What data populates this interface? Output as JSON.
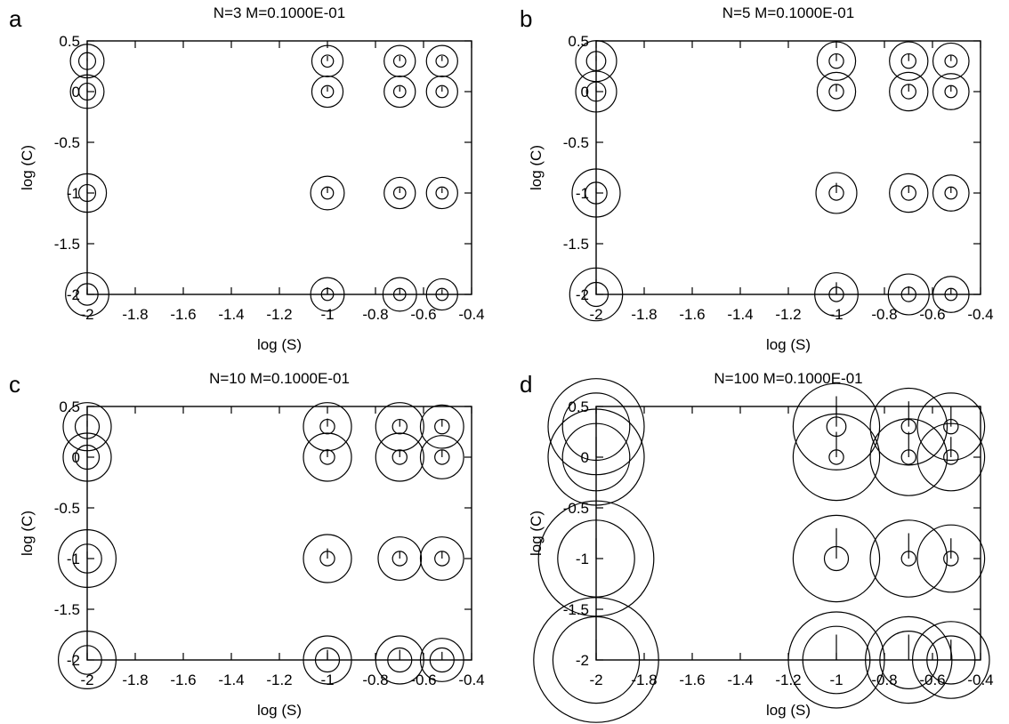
{
  "chart_data": [
    {
      "type": "scatter",
      "panel": "a",
      "title": "N=3 M=0.1000E-01",
      "xlabel": "log (S)",
      "ylabel": "log (C)",
      "xlim": [
        -2,
        -0.4
      ],
      "ylim": [
        -2,
        0.5
      ],
      "xticks": [
        "-2",
        "-1.8",
        "-1.6",
        "-1.4",
        "-1.2",
        "-1",
        "-0.8",
        "-0.6",
        "-0.4"
      ],
      "yticks": [
        "0.5",
        "0",
        "-0.5",
        "-1",
        "-1.5",
        "-2"
      ],
      "grid": false,
      "points": [
        {
          "x": -2,
          "y": 0.301,
          "r_outer": 0.07,
          "r_inner": 0.035,
          "err": 0.03
        },
        {
          "x": -2,
          "y": 0,
          "r_outer": 0.07,
          "r_inner": 0.035,
          "err": 0.03
        },
        {
          "x": -2,
          "y": -1,
          "r_outer": 0.08,
          "r_inner": 0.035,
          "err": 0.04
        },
        {
          "x": -2,
          "y": -2,
          "r_outer": 0.09,
          "r_inner": 0.045,
          "err": 0.05
        },
        {
          "x": -1,
          "y": 0.301,
          "r_outer": 0.065,
          "r_inner": 0.025,
          "err": 0.05
        },
        {
          "x": -1,
          "y": 0,
          "r_outer": 0.065,
          "r_inner": 0.025,
          "err": 0.05
        },
        {
          "x": -1,
          "y": -1,
          "r_outer": 0.07,
          "r_inner": 0.025,
          "err": 0.06
        },
        {
          "x": -1,
          "y": -2,
          "r_outer": 0.07,
          "r_inner": 0.025,
          "err": 0.06
        },
        {
          "x": -0.699,
          "y": 0.301,
          "r_outer": 0.065,
          "r_inner": 0.025,
          "err": 0.05
        },
        {
          "x": -0.699,
          "y": 0,
          "r_outer": 0.065,
          "r_inner": 0.025,
          "err": 0.05
        },
        {
          "x": -0.699,
          "y": -1,
          "r_outer": 0.065,
          "r_inner": 0.025,
          "err": 0.05
        },
        {
          "x": -0.699,
          "y": -2,
          "r_outer": 0.07,
          "r_inner": 0.025,
          "err": 0.06
        },
        {
          "x": -0.523,
          "y": 0.301,
          "r_outer": 0.065,
          "r_inner": 0.025,
          "err": 0.05
        },
        {
          "x": -0.523,
          "y": 0,
          "r_outer": 0.065,
          "r_inner": 0.025,
          "err": 0.05
        },
        {
          "x": -0.523,
          "y": -1,
          "r_outer": 0.065,
          "r_inner": 0.025,
          "err": 0.05
        },
        {
          "x": -0.523,
          "y": -2,
          "r_outer": 0.065,
          "r_inner": 0.025,
          "err": 0.05
        }
      ]
    },
    {
      "type": "scatter",
      "panel": "b",
      "title": "N=5 M=0.1000E-01",
      "xlabel": "log (S)",
      "ylabel": "log (C)",
      "xlim": [
        -2,
        -0.4
      ],
      "ylim": [
        -2,
        0.5
      ],
      "xticks": [
        "-2",
        "-1.8",
        "-1.6",
        "-1.4",
        "-1.2",
        "-1",
        "-0.8",
        "-0.6",
        "-0.4"
      ],
      "yticks": [
        "0.5",
        "0",
        "-0.5",
        "-1",
        "-1.5",
        "-2"
      ],
      "grid": false,
      "points": [
        {
          "x": -2,
          "y": 0.301,
          "r_outer": 0.085,
          "r_inner": 0.04,
          "err": 0.05
        },
        {
          "x": -2,
          "y": 0,
          "r_outer": 0.085,
          "r_inner": 0.04,
          "err": 0.05
        },
        {
          "x": -2,
          "y": -1,
          "r_outer": 0.1,
          "r_inner": 0.045,
          "err": 0.05
        },
        {
          "x": -2,
          "y": -2,
          "r_outer": 0.11,
          "r_inner": 0.05,
          "err": 0.15
        },
        {
          "x": -1,
          "y": 0.301,
          "r_outer": 0.08,
          "r_inner": 0.03,
          "err": 0.07
        },
        {
          "x": -1,
          "y": 0,
          "r_outer": 0.08,
          "r_inner": 0.03,
          "err": 0.07
        },
        {
          "x": -1,
          "y": -1,
          "r_outer": 0.085,
          "r_inner": 0.03,
          "err": 0.1
        },
        {
          "x": -1,
          "y": -2,
          "r_outer": 0.09,
          "r_inner": 0.03,
          "err": 0.12
        },
        {
          "x": -0.699,
          "y": 0.301,
          "r_outer": 0.08,
          "r_inner": 0.03,
          "err": 0.07
        },
        {
          "x": -0.699,
          "y": 0,
          "r_outer": 0.08,
          "r_inner": 0.03,
          "err": 0.07
        },
        {
          "x": -0.699,
          "y": -1,
          "r_outer": 0.08,
          "r_inner": 0.03,
          "err": 0.07
        },
        {
          "x": -0.699,
          "y": -2,
          "r_outer": 0.085,
          "r_inner": 0.03,
          "err": 0.08
        },
        {
          "x": -0.523,
          "y": 0.301,
          "r_outer": 0.075,
          "r_inner": 0.025,
          "err": 0.06
        },
        {
          "x": -0.523,
          "y": 0,
          "r_outer": 0.075,
          "r_inner": 0.025,
          "err": 0.06
        },
        {
          "x": -0.523,
          "y": -1,
          "r_outer": 0.075,
          "r_inner": 0.025,
          "err": 0.06
        },
        {
          "x": -0.523,
          "y": -2,
          "r_outer": 0.075,
          "r_inner": 0.025,
          "err": 0.06
        }
      ]
    },
    {
      "type": "scatter",
      "panel": "c",
      "title": "N=10 M=0.1000E-01",
      "xlabel": "log (S)",
      "ylabel": "log (C)",
      "xlim": [
        -2,
        -0.4
      ],
      "ylim": [
        -2,
        0.5
      ],
      "xticks": [
        "-2",
        "-1.8",
        "-1.6",
        "-1.4",
        "-1.2",
        "-1",
        "-0.8",
        "-0.6",
        "-0.4"
      ],
      "yticks": [
        "0.5",
        "0",
        "-0.5",
        "-1",
        "-1.5",
        "-2"
      ],
      "grid": false,
      "points": [
        {
          "x": -2,
          "y": 0.301,
          "r_outer": 0.1,
          "r_inner": 0.05,
          "err": 0.06
        },
        {
          "x": -2,
          "y": 0,
          "r_outer": 0.1,
          "r_inner": 0.05,
          "err": 0.06
        },
        {
          "x": -2,
          "y": -1,
          "r_outer": 0.12,
          "r_inner": 0.06,
          "err": 0.07
        },
        {
          "x": -2,
          "y": -2,
          "r_outer": 0.12,
          "r_inner": 0.06,
          "err": 0.1
        },
        {
          "x": -1,
          "y": 0.301,
          "r_outer": 0.1,
          "r_inner": 0.03,
          "err": 0.08
        },
        {
          "x": -1,
          "y": 0,
          "r_outer": 0.1,
          "r_inner": 0.03,
          "err": 0.08
        },
        {
          "x": -1,
          "y": -1,
          "r_outer": 0.1,
          "r_inner": 0.03,
          "err": 0.1
        },
        {
          "x": -1,
          "y": -2,
          "r_outer": 0.1,
          "r_inner": 0.05,
          "err": 0.1
        },
        {
          "x": -0.699,
          "y": 0.301,
          "r_outer": 0.1,
          "r_inner": 0.03,
          "err": 0.07
        },
        {
          "x": -0.699,
          "y": 0,
          "r_outer": 0.1,
          "r_inner": 0.03,
          "err": 0.07
        },
        {
          "x": -0.699,
          "y": -1,
          "r_outer": 0.09,
          "r_inner": 0.03,
          "err": 0.07
        },
        {
          "x": -0.699,
          "y": -2,
          "r_outer": 0.1,
          "r_inner": 0.05,
          "err": 0.1
        },
        {
          "x": -0.523,
          "y": 0.301,
          "r_outer": 0.09,
          "r_inner": 0.03,
          "err": 0.07
        },
        {
          "x": -0.523,
          "y": 0,
          "r_outer": 0.09,
          "r_inner": 0.03,
          "err": 0.07
        },
        {
          "x": -0.523,
          "y": -1,
          "r_outer": 0.09,
          "r_inner": 0.03,
          "err": 0.07
        },
        {
          "x": -0.523,
          "y": -2,
          "r_outer": 0.09,
          "r_inner": 0.05,
          "err": 0.08
        }
      ]
    },
    {
      "type": "scatter",
      "panel": "d",
      "title": "N=100 M=0.1000E-01",
      "xlabel": "log (S)",
      "ylabel": "log (C)",
      "xlim": [
        -2,
        -0.4
      ],
      "ylim": [
        -2,
        0.5
      ],
      "xticks": [
        "-2",
        "-1.8",
        "-1.6",
        "-1.4",
        "-1.2",
        "-1",
        "-0.8",
        "-0.6",
        "-0.4"
      ],
      "yticks": [
        "0.5",
        "0",
        "-0.5",
        "-1",
        "-1.5",
        "-2"
      ],
      "grid": false,
      "points": [
        {
          "x": -2,
          "y": 0.301,
          "r_outer": 0.2,
          "r_inner": 0.14,
          "err": 0.2
        },
        {
          "x": -2,
          "y": 0,
          "r_outer": 0.2,
          "r_inner": 0.14,
          "err": 0.2
        },
        {
          "x": -2,
          "y": -1,
          "r_outer": 0.24,
          "r_inner": 0.16,
          "err": 0.2
        },
        {
          "x": -2,
          "y": -2,
          "r_outer": 0.26,
          "r_inner": 0.18,
          "err": 0.2
        },
        {
          "x": -1,
          "y": 0.301,
          "r_outer": 0.18,
          "r_inner": 0.04,
          "err": 0.3
        },
        {
          "x": -1,
          "y": 0,
          "r_outer": 0.18,
          "r_inner": 0.03,
          "err": 0.25
        },
        {
          "x": -1,
          "y": -1,
          "r_outer": 0.18,
          "r_inner": 0.05,
          "err": 0.3
        },
        {
          "x": -1,
          "y": -2,
          "r_outer": 0.2,
          "r_inner": 0.14,
          "err": 0.25
        },
        {
          "x": -0.699,
          "y": 0.301,
          "r_outer": 0.16,
          "r_inner": 0.03,
          "err": 0.25
        },
        {
          "x": -0.699,
          "y": 0,
          "r_outer": 0.16,
          "r_inner": 0.03,
          "err": 0.25
        },
        {
          "x": -0.699,
          "y": -1,
          "r_outer": 0.16,
          "r_inner": 0.03,
          "err": 0.25
        },
        {
          "x": -0.699,
          "y": -2,
          "r_outer": 0.18,
          "r_inner": 0.12,
          "err": 0.25
        },
        {
          "x": -0.523,
          "y": 0.301,
          "r_outer": 0.14,
          "r_inner": 0.03,
          "err": 0.2
        },
        {
          "x": -0.523,
          "y": 0,
          "r_outer": 0.14,
          "r_inner": 0.03,
          "err": 0.2
        },
        {
          "x": -0.523,
          "y": -1,
          "r_outer": 0.14,
          "r_inner": 0.03,
          "err": 0.2
        },
        {
          "x": -0.523,
          "y": -2,
          "r_outer": 0.16,
          "r_inner": 0.1,
          "err": 0.2
        }
      ]
    }
  ]
}
